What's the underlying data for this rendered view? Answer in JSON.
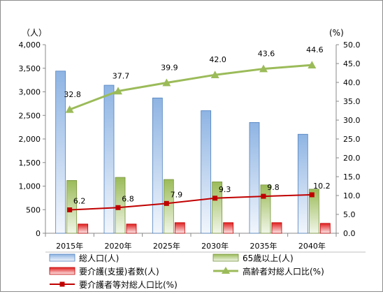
{
  "chart_data": {
    "type": "bar",
    "categories": [
      "2015年",
      "2020年",
      "2025年",
      "2030年",
      "2035年",
      "2040年"
    ],
    "left_axis": {
      "unit": "（人）",
      "min": 0,
      "max": 4000,
      "ticks": [
        "0",
        "500",
        "1,000",
        "1,500",
        "2,000",
        "2,500",
        "3,000",
        "3,500",
        "4,000"
      ]
    },
    "right_axis": {
      "unit": "(%)",
      "min": 0,
      "max": 50,
      "ticks": [
        "0.0",
        "5.0",
        "10.0",
        "15.0",
        "20.0",
        "25.0",
        "30.0",
        "35.0",
        "40.0",
        "45.0",
        "50.0"
      ]
    },
    "grid": false,
    "legend_position": "bottom",
    "series": [
      {
        "name": "総人口(人)",
        "kind": "bar",
        "axis": "left",
        "color": "#8eb4e3",
        "values": [
          3440,
          3140,
          2870,
          2600,
          2350,
          2100
        ]
      },
      {
        "name": "65歳以上(人)",
        "kind": "bar",
        "axis": "left",
        "color": "#9bbb59",
        "values": [
          1120,
          1185,
          1140,
          1090,
          1025,
          935
        ]
      },
      {
        "name": "要介護(支援)者数(人)",
        "kind": "bar",
        "axis": "left",
        "color": "#e02020",
        "values": [
          195,
          195,
          225,
          225,
          225,
          210
        ]
      },
      {
        "name": "高齢者対総人口比(%)",
        "kind": "line",
        "axis": "right",
        "color": "#9bbb59",
        "marker": "triangle",
        "values": [
          32.8,
          37.7,
          39.9,
          42.0,
          43.6,
          44.6
        ],
        "labels": [
          "32.8",
          "37.7",
          "39.9",
          "42.0",
          "43.6",
          "44.6"
        ]
      },
      {
        "name": "要介護者等対総人口比(%)",
        "kind": "line",
        "axis": "right",
        "color": "#c00000",
        "marker": "square",
        "values": [
          6.2,
          6.8,
          7.9,
          9.3,
          9.8,
          10.2
        ],
        "labels": [
          "6.2",
          "6.8",
          "7.9",
          "9.3",
          "9.8",
          "10.2"
        ]
      }
    ]
  }
}
